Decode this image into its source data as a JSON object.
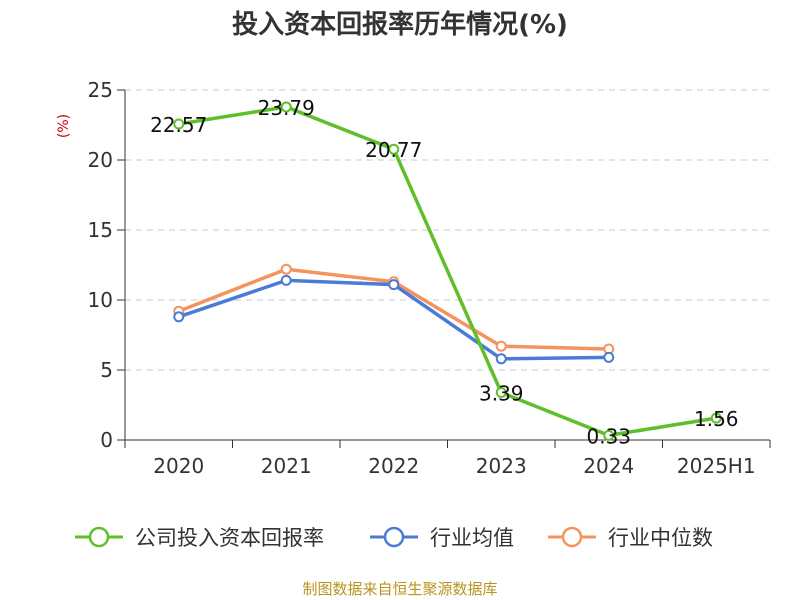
{
  "chart_data": {
    "type": "line",
    "title": "投入资本回报率历年情况(%)",
    "ylabel": "(%)",
    "xlabel": "",
    "categories": [
      "2020",
      "2021",
      "2022",
      "2023",
      "2024",
      "2025H1"
    ],
    "ylim": [
      0,
      25
    ],
    "yticks": [
      0,
      5,
      10,
      15,
      20,
      25
    ],
    "grid": true,
    "legend_position": "bottom",
    "series": [
      {
        "name": "公司投入资本回报率",
        "color": "#5fbf2a",
        "values": [
          22.57,
          23.79,
          20.77,
          3.39,
          0.33,
          1.56
        ],
        "labels": [
          "22.57",
          "23.79",
          "20.77",
          "3.39",
          "0.33",
          "1.56"
        ]
      },
      {
        "name": "行业均值",
        "color": "#4a7bd6",
        "values": [
          8.8,
          11.4,
          11.1,
          5.8,
          5.9,
          null
        ]
      },
      {
        "name": "行业中位数",
        "color": "#f5935e",
        "values": [
          9.2,
          12.2,
          11.3,
          6.7,
          6.5,
          null
        ]
      }
    ]
  },
  "source": "制图数据来自恒生聚源数据库"
}
